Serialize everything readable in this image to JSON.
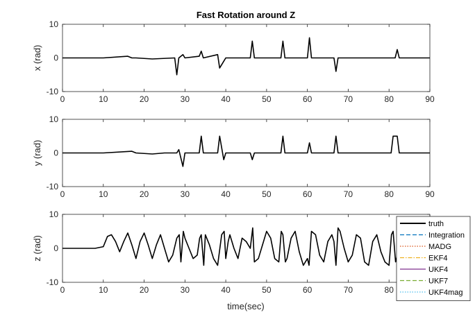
{
  "chart_data": {
    "type": "line",
    "title": "Fast Rotation around Z",
    "xlabel": "time(sec)",
    "xlim": [
      0,
      90
    ],
    "xticks": [
      0,
      10,
      20,
      30,
      40,
      50,
      60,
      70,
      80,
      90
    ],
    "legend_position": "bottom-right",
    "legend": [
      {
        "name": "truth",
        "color": "#000000",
        "style": "solid"
      },
      {
        "name": "Integration",
        "color": "#0072BD",
        "style": "dashed"
      },
      {
        "name": "MADG",
        "color": "#D95319",
        "style": "dotted"
      },
      {
        "name": "EKF4",
        "color": "#EDB120",
        "style": "dashdot"
      },
      {
        "name": "UKF4",
        "color": "#7E2F8E",
        "style": "solid"
      },
      {
        "name": "UKF7",
        "color": "#77AC30",
        "style": "dashed"
      },
      {
        "name": "UKF4mag",
        "color": "#4DBEEE",
        "style": "dotted"
      }
    ],
    "subplots": [
      {
        "ylabel": "x (rad)",
        "ylim": [
          -10,
          10
        ],
        "yticks": [
          -10,
          0,
          10
        ],
        "x": [
          0,
          10,
          16,
          17,
          18,
          22,
          27.5,
          28,
          28.5,
          29.5,
          30,
          33.5,
          34,
          34.5,
          38,
          38.5,
          39.5,
          40,
          46,
          46.5,
          47,
          53.5,
          54,
          54.5,
          60,
          60.5,
          61,
          66.5,
          67,
          67.5,
          75,
          81.5,
          82,
          82.5,
          90
        ],
        "series": [
          {
            "name": "truth",
            "values": [
              0,
              0,
              0.5,
              0,
              0,
              -0.3,
              0,
              -5,
              0,
              1,
              0,
              0.5,
              2,
              0,
              1,
              -3,
              -1,
              0,
              0,
              5,
              0,
              0,
              5,
              0,
              0,
              6,
              0,
              0,
              -4,
              0,
              0,
              0,
              2.5,
              0,
              0
            ]
          }
        ]
      },
      {
        "ylabel": "y (rad)",
        "ylim": [
          -10,
          10
        ],
        "yticks": [
          -10,
          0,
          10
        ],
        "x": [
          0,
          10,
          17,
          18,
          22,
          25,
          28,
          28.5,
          29.5,
          30,
          33.5,
          34,
          34.5,
          38,
          38.5,
          39.5,
          40,
          46,
          46.5,
          47,
          53.5,
          54,
          54.5,
          60,
          60.5,
          61,
          66.5,
          67,
          67.5,
          75,
          80.5,
          81,
          82,
          82.5,
          90
        ],
        "series": [
          {
            "name": "truth",
            "values": [
              0,
              0,
              0.5,
              0,
              -0.3,
              0,
              0,
              1,
              -4,
              0,
              0,
              5,
              0,
              0,
              5,
              -2,
              0,
              0,
              -2,
              0,
              0,
              5,
              0,
              0,
              3,
              0,
              0,
              5,
              0,
              0,
              0,
              5,
              5,
              0,
              0
            ]
          }
        ]
      },
      {
        "ylabel": "z (rad)",
        "ylim": [
          -10,
          10
        ],
        "yticks": [
          -10,
          0,
          10
        ],
        "x": [
          0,
          8,
          10,
          11,
          12,
          13,
          14,
          15,
          16,
          17,
          18,
          19,
          20,
          21,
          22,
          23,
          24,
          25,
          26,
          27,
          28,
          28.6,
          29,
          29.6,
          30,
          31,
          32,
          33,
          33.6,
          34,
          34.6,
          35,
          36,
          37,
          38,
          39,
          39.6,
          40,
          40.6,
          41,
          42,
          43,
          44,
          45,
          46,
          46.6,
          47,
          48,
          49,
          50,
          51,
          52,
          53,
          53.6,
          54,
          54.6,
          55,
          56,
          57,
          58,
          59,
          60,
          60.4,
          61,
          62,
          63,
          64,
          65,
          66,
          66.5,
          67,
          67.5,
          68,
          69,
          70,
          71,
          72,
          73,
          74,
          75,
          76,
          77,
          78,
          79,
          80,
          80.6,
          81,
          81.6,
          82,
          83,
          84,
          85,
          86,
          87,
          88,
          89,
          90
        ],
        "series": [
          {
            "name": "truth",
            "values": [
              0,
              0,
              0.5,
              3.5,
              4,
              2,
              -1,
              2,
              4.5,
              1,
              -3,
              2,
              4.5,
              1,
              -3,
              1,
              4,
              0,
              -4,
              -2,
              3,
              4,
              -4,
              5,
              3,
              0,
              -3,
              -2,
              3,
              4,
              -5,
              4,
              1,
              -3,
              -5,
              4,
              5,
              -3,
              2,
              4,
              0,
              -3,
              3,
              2,
              0,
              6,
              -4,
              -3,
              1,
              5,
              3,
              -3,
              -4,
              5,
              4,
              -4,
              -3,
              3,
              5,
              -1,
              -5,
              -3,
              -5,
              5,
              4,
              -2,
              -4,
              2,
              4,
              2,
              -5,
              6,
              5,
              0,
              -4,
              -2,
              4,
              3,
              -4,
              -5,
              2,
              4,
              -1,
              -4,
              -5,
              4,
              5,
              -4,
              -2,
              3,
              3,
              -2,
              -4,
              0,
              2,
              2,
              0
            ]
          }
        ]
      }
    ]
  }
}
